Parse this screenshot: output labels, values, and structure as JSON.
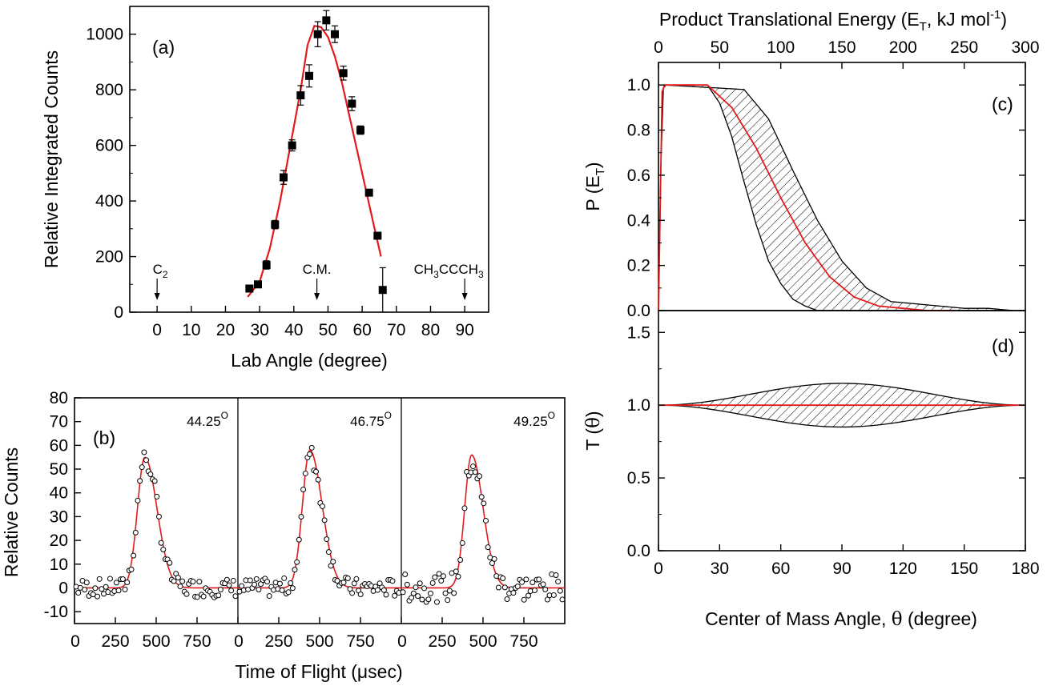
{
  "chart_data": [
    {
      "panel": "a",
      "type": "scatter",
      "panel_label": "(a)",
      "xlabel": "Lab Angle (degree)",
      "ylabel": "Relative Integrated Counts",
      "xlim": [
        -8,
        97
      ],
      "ylim": [
        0,
        1100
      ],
      "xticks": [
        0,
        10,
        20,
        30,
        40,
        50,
        60,
        70,
        80,
        90
      ],
      "yticks": [
        0,
        200,
        400,
        600,
        800,
        1000
      ],
      "points": [
        {
          "x": 27.0,
          "y": 85,
          "err": 0
        },
        {
          "x": 29.5,
          "y": 100,
          "err": 0
        },
        {
          "x": 32.0,
          "y": 170,
          "err": 15
        },
        {
          "x": 34.5,
          "y": 315,
          "err": 15
        },
        {
          "x": 37.0,
          "y": 485,
          "err": 25
        },
        {
          "x": 39.5,
          "y": 600,
          "err": 20
        },
        {
          "x": 42.0,
          "y": 780,
          "err": 35
        },
        {
          "x": 44.5,
          "y": 850,
          "err": 40
        },
        {
          "x": 47.0,
          "y": 1000,
          "err": 45
        },
        {
          "x": 49.5,
          "y": 1050,
          "err": 35
        },
        {
          "x": 52.0,
          "y": 1000,
          "err": 30
        },
        {
          "x": 54.5,
          "y": 860,
          "err": 25
        },
        {
          "x": 57.0,
          "y": 750,
          "err": 25
        },
        {
          "x": 59.5,
          "y": 655,
          "err": 15
        },
        {
          "x": 62.0,
          "y": 430,
          "err": 10
        },
        {
          "x": 64.5,
          "y": 275,
          "err": 0
        },
        {
          "x": 66.0,
          "y": 80,
          "err": 80
        }
      ],
      "fit": {
        "name": "fit",
        "x": [
          26.5,
          30,
          33,
          36,
          39,
          42,
          44,
          46,
          48,
          50,
          52,
          54,
          56,
          58,
          60,
          62,
          64,
          65.5
        ],
        "y": [
          55,
          110,
          230,
          400,
          600,
          800,
          960,
          1030,
          1025,
          990,
          920,
          830,
          720,
          610,
          500,
          390,
          280,
          200
        ]
      },
      "markers": [
        {
          "x": 0,
          "label": "C",
          "sub": "2"
        },
        {
          "x": 46.75,
          "label": "C.M.",
          "sub": ""
        },
        {
          "x": 90,
          "label": "CH",
          "sub": "3",
          "label2": "CCCH",
          "sub2": "3"
        }
      ]
    },
    {
      "panel": "b",
      "type": "scatter",
      "panel_label": "(b)",
      "xlabel": "Time of Flight (μsec)",
      "ylabel": "Relative Counts",
      "xlim": [
        0,
        1000
      ],
      "ylim": [
        -15,
        80
      ],
      "xticks": [
        0,
        250,
        500,
        750
      ],
      "yticks": [
        -10,
        0,
        10,
        20,
        30,
        40,
        50,
        60,
        70,
        80
      ],
      "subpanels": [
        {
          "angle_label": "44.25",
          "peak_x": 430,
          "peak_y": 55,
          "sigma_left": 45,
          "sigma_right": 75,
          "max_pt": 58
        },
        {
          "angle_label": "46.75",
          "peak_x": 440,
          "peak_y": 58,
          "sigma_left": 45,
          "sigma_right": 75,
          "max_pt": 59
        },
        {
          "angle_label": "49.25",
          "peak_x": 430,
          "peak_y": 56,
          "sigma_left": 42,
          "sigma_right": 70,
          "max_pt": 59
        }
      ],
      "degree_mark": "O"
    },
    {
      "panel": "c",
      "type": "line",
      "panel_label": "(c)",
      "ylabel_main": "P (E",
      "ylabel_sub": "T",
      "ylabel_close": ")",
      "top_xlabel_main": "Product Translational Energy (E",
      "top_xlabel_sub": "T",
      "top_xlabel_mid": ", kJ mol",
      "top_xlabel_sup": "-1",
      "top_xlabel_close": ")",
      "xlim": [
        0,
        300
      ],
      "ylim": [
        0,
        1.1
      ],
      "xticks": [
        0,
        50,
        100,
        150,
        200,
        250,
        300
      ],
      "yticks": [
        "0.0",
        "0.2",
        "0.4",
        "0.6",
        "0.8",
        "1.0"
      ],
      "best_fit": {
        "x": [
          0,
          3,
          5,
          40,
          60,
          80,
          100,
          120,
          140,
          160,
          180,
          200,
          220,
          240
        ],
        "y": [
          0,
          0.97,
          1.0,
          1.0,
          0.9,
          0.72,
          0.5,
          0.3,
          0.15,
          0.06,
          0.02,
          0.01,
          0.0,
          0.0
        ]
      },
      "upper_bound": {
        "x": [
          0,
          3,
          5,
          70,
          90,
          110,
          130,
          150,
          170,
          190,
          210,
          230,
          250,
          270,
          290
        ],
        "y": [
          0,
          0.97,
          1.0,
          0.98,
          0.85,
          0.62,
          0.4,
          0.22,
          0.1,
          0.04,
          0.03,
          0.02,
          0.01,
          0.01,
          0.0
        ]
      },
      "lower_bound": {
        "x": [
          0,
          3,
          5,
          40,
          50,
          60,
          70,
          80,
          90,
          100,
          110,
          120,
          130,
          140,
          150
        ],
        "y": [
          0,
          0.97,
          1.0,
          1.0,
          0.92,
          0.77,
          0.57,
          0.38,
          0.22,
          0.12,
          0.05,
          0.02,
          0.0,
          0.0,
          0.0
        ]
      }
    },
    {
      "panel": "d",
      "type": "line",
      "panel_label": "(d)",
      "ylabel_main": "T (",
      "ylabel_greek": "θ",
      "ylabel_close": ")",
      "xlabel_main": "Center of Mass Angle, ",
      "xlabel_greek": "θ",
      "xlabel_rest": " (degree)",
      "xlim": [
        0,
        180
      ],
      "ylim": [
        0,
        1.65
      ],
      "xticks": [
        0,
        30,
        60,
        90,
        120,
        150,
        180
      ],
      "yticks": [
        "0.0",
        "0.5",
        "1.0",
        "1.5"
      ],
      "best_fit": {
        "x": [
          0,
          180
        ],
        "y": [
          1.0,
          1.0
        ]
      },
      "amplitude": 0.15
    }
  ]
}
